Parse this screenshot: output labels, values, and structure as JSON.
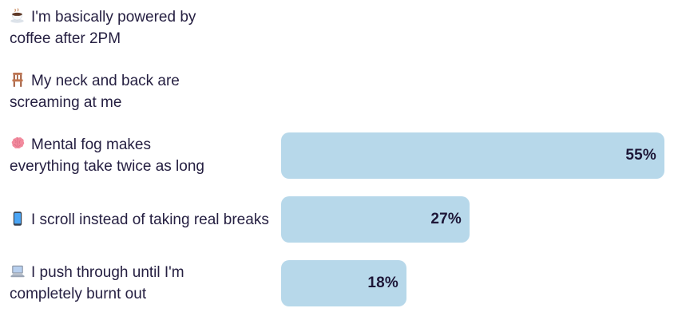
{
  "chart_data": {
    "type": "bar",
    "orientation": "horizontal",
    "title": "",
    "xlabel": "",
    "ylabel": "",
    "legend": false,
    "grid": false,
    "axes_visible": false,
    "value_unit": "%",
    "categories": [
      "☕ I'm basically powered by coffee after 2PM",
      "🪑 My neck and back are screaming at me",
      "🧠 Mental fog makes everything take twice as long",
      "📱 I scroll instead of taking real breaks",
      "💻 I push through until I'm completely burnt out"
    ],
    "values": [
      null,
      null,
      55,
      27,
      18
    ],
    "rows": [
      {
        "emoji": "☕",
        "icon": "coffee-emoji-icon",
        "label": "I'm basically powered by coffee after 2PM",
        "lines": [
          "I'm basically powered by",
          "coffee after 2PM"
        ],
        "value": null,
        "value_label": ""
      },
      {
        "emoji": "🪑",
        "icon": "chair-emoji-icon",
        "label": "My neck and back are screaming at me",
        "lines": [
          "My neck and back are",
          "screaming at me"
        ],
        "value": null,
        "value_label": ""
      },
      {
        "emoji": "🧠",
        "icon": "brain-emoji-icon",
        "label": "Mental fog makes everything take twice as long",
        "lines": [
          "Mental fog makes",
          "everything take twice as long"
        ],
        "value": 55,
        "value_label": "55%"
      },
      {
        "emoji": "📱",
        "icon": "mobile-phone-emoji-icon",
        "label": "I scroll instead of taking real breaks",
        "lines": [
          "I scroll instead of taking",
          "real breaks"
        ],
        "value": 27,
        "value_label": "27%"
      },
      {
        "emoji": "💻",
        "icon": "laptop-emoji-icon",
        "label": "I push through until I'm completely burnt out",
        "lines": [
          "I push through until I'm",
          "completely burnt out"
        ],
        "value": 18,
        "value_label": "18%"
      }
    ],
    "colors": {
      "bar": "#b7d8ea",
      "label": "#262042",
      "value": "#1d1637",
      "background": "#ffffff"
    }
  }
}
